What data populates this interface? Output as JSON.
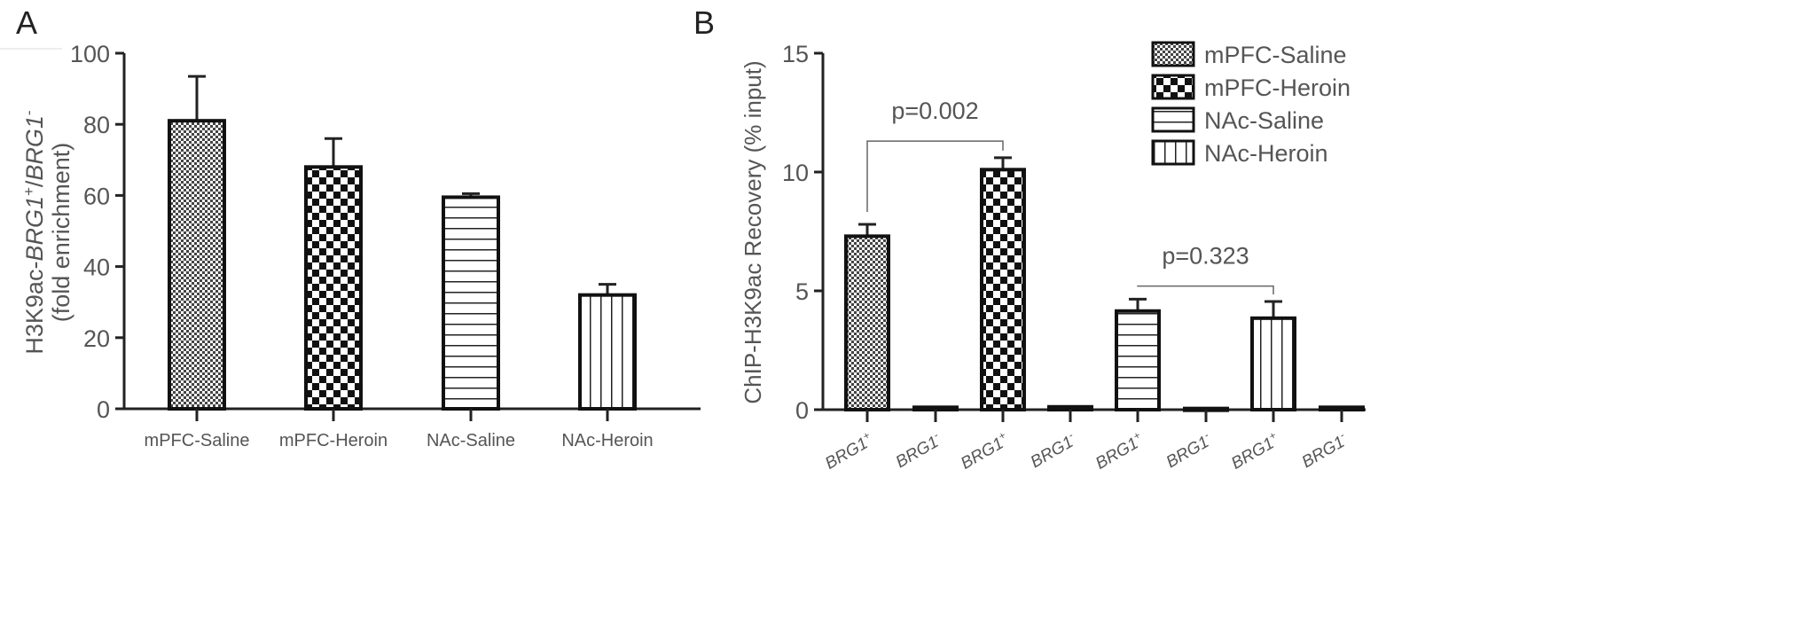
{
  "chart_data": [
    {
      "panel_label": "A",
      "type": "bar",
      "ylabel_line1_parts": [
        "H3K9ac-",
        "BRG1",
        "+",
        "/",
        "BRG1",
        "-"
      ],
      "ylabel_line2": "(fold enrichment)",
      "ylim": [
        0,
        100
      ],
      "yticks": [
        0,
        20,
        40,
        60,
        80,
        100
      ],
      "grid": false,
      "categories": [
        "mPFC-Saline",
        "mPFC-Heroin",
        "NAc-Saline",
        "NAc-Heroin"
      ],
      "values": [
        81,
        68,
        59.5,
        32
      ],
      "error_upper": [
        93.5,
        76,
        60.5,
        35
      ],
      "patterns": [
        "fine-check",
        "checker",
        "horizontal",
        "vertical"
      ]
    },
    {
      "panel_label": "B",
      "type": "bar",
      "ylabel": "ChIP-H3K9ac Recovery (% input)",
      "ylim": [
        0,
        15
      ],
      "yticks": [
        0,
        5,
        10,
        15
      ],
      "grid": false,
      "legend_position": "top-right",
      "legend": [
        {
          "name": "mPFC-Saline",
          "pattern": "fine-check"
        },
        {
          "name": "mPFC-Heroin",
          "pattern": "checker"
        },
        {
          "name": "NAc-Saline",
          "pattern": "horizontal"
        },
        {
          "name": "NAc-Heroin",
          "pattern": "vertical"
        }
      ],
      "categories": [
        {
          "gene": "BRG1",
          "sup": "+"
        },
        {
          "gene": "BRG1",
          "sup": "-"
        },
        {
          "gene": "BRG1",
          "sup": "+"
        },
        {
          "gene": "BRG1",
          "sup": "-"
        },
        {
          "gene": "BRG1",
          "sup": "+"
        },
        {
          "gene": "BRG1",
          "sup": "-"
        },
        {
          "gene": "BRG1",
          "sup": "+"
        },
        {
          "gene": "BRG1",
          "sup": "-"
        }
      ],
      "values": [
        7.3,
        0.1,
        10.1,
        0.12,
        4.15,
        0.05,
        3.85,
        0.1
      ],
      "error_upper": [
        7.8,
        0.1,
        10.6,
        0.12,
        4.65,
        0.05,
        4.55,
        0.1
      ],
      "bar_patterns": [
        "fine-check",
        "fine-check",
        "checker",
        "checker",
        "horizontal",
        "horizontal",
        "vertical",
        "vertical"
      ],
      "annotations": [
        {
          "text": "p=0.002",
          "from_bar": 0,
          "to_bar": 2,
          "bracket_y": 11.3
        },
        {
          "text": "p=0.323",
          "from_bar": 4,
          "to_bar": 6,
          "bracket_y": 5.2
        }
      ]
    }
  ]
}
